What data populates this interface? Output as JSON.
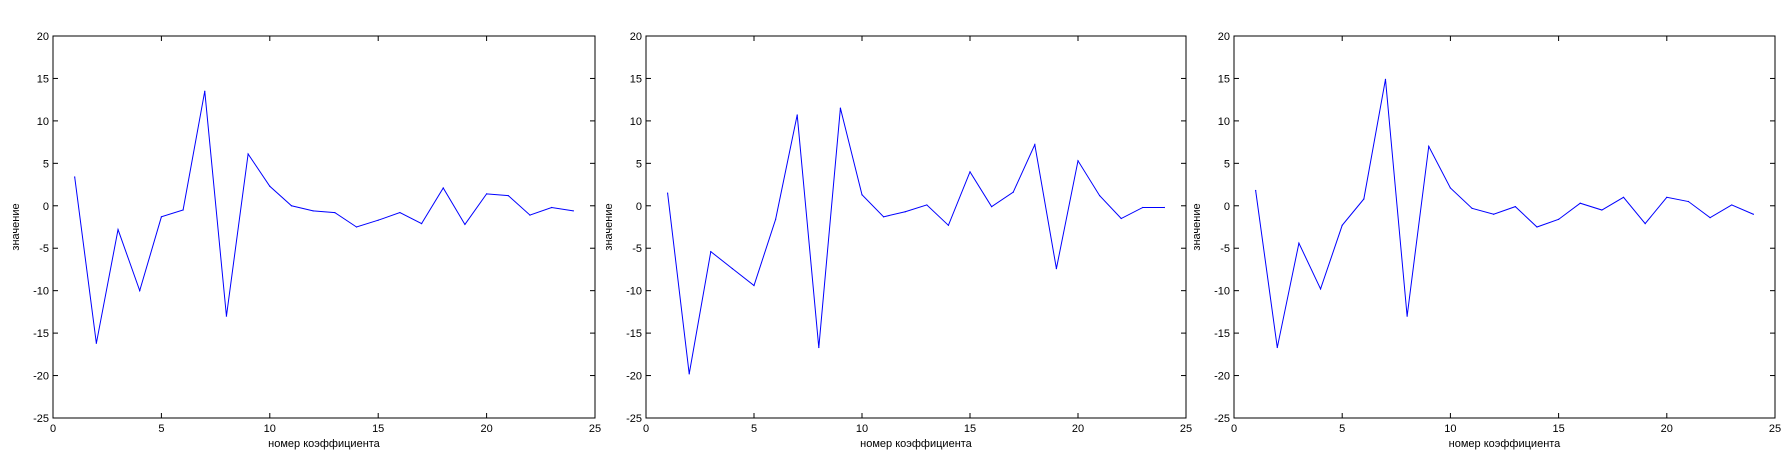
{
  "figure": {
    "background": "#ffffff",
    "line_color": "#0000ff",
    "axes_color": "#000000"
  },
  "chart_data": [
    {
      "type": "line",
      "title": "",
      "xlabel": "номер коэффициента",
      "ylabel": "значение",
      "xlim": [
        0,
        25
      ],
      "ylim": [
        -25,
        20
      ],
      "xticks": [
        0,
        5,
        10,
        15,
        20,
        25
      ],
      "yticks": [
        -25,
        -20,
        -15,
        -10,
        -5,
        0,
        5,
        10,
        15,
        20
      ],
      "grid": false,
      "x": [
        1,
        2,
        3,
        4,
        5,
        6,
        7,
        8,
        9,
        10,
        11,
        12,
        13,
        14,
        15,
        16,
        17,
        18,
        19,
        20,
        21,
        22,
        23,
        24
      ],
      "series": [
        {
          "values": [
            3.4,
            -16.2,
            -2.8,
            -10.0,
            -1.3,
            -0.5,
            13.5,
            -13.0,
            6.1,
            2.3,
            0.0,
            -0.6,
            -0.8,
            -2.5,
            -1.7,
            -0.8,
            -2.1,
            2.1,
            -2.2,
            1.4,
            1.2,
            -1.1,
            -0.2,
            -0.6
          ]
        }
      ]
    },
    {
      "type": "line",
      "title": "",
      "xlabel": "номер коэффициента",
      "ylabel": "значение",
      "xlim": [
        0,
        25
      ],
      "ylim": [
        -25,
        20
      ],
      "xticks": [
        0,
        5,
        10,
        15,
        20,
        25
      ],
      "yticks": [
        -25,
        -20,
        -15,
        -10,
        -5,
        0,
        5,
        10,
        15,
        20
      ],
      "grid": false,
      "x": [
        1,
        2,
        3,
        4,
        5,
        6,
        7,
        8,
        9,
        10,
        11,
        12,
        13,
        14,
        15,
        16,
        17,
        18,
        19,
        20,
        21,
        22,
        23,
        24
      ],
      "series": [
        {
          "values": [
            1.5,
            -19.8,
            -5.4,
            -7.4,
            -9.4,
            -1.6,
            10.7,
            -16.7,
            11.5,
            1.3,
            -1.3,
            -0.7,
            0.1,
            -2.3,
            4.0,
            -0.1,
            1.6,
            7.2,
            -7.4,
            5.3,
            1.2,
            -1.5,
            -0.2,
            -0.2
          ]
        }
      ]
    },
    {
      "type": "line",
      "title": "",
      "xlabel": "номер коэффициента",
      "ylabel": "значение",
      "xlim": [
        0,
        25
      ],
      "ylim": [
        -25,
        20
      ],
      "xticks": [
        0,
        5,
        10,
        15,
        20,
        25
      ],
      "yticks": [
        -25,
        -20,
        -15,
        -10,
        -5,
        0,
        5,
        10,
        15,
        20
      ],
      "grid": false,
      "x": [
        1,
        2,
        3,
        4,
        5,
        6,
        7,
        8,
        9,
        10,
        11,
        12,
        13,
        14,
        15,
        16,
        17,
        18,
        19,
        20,
        21,
        22,
        23,
        24
      ],
      "series": [
        {
          "values": [
            1.8,
            -16.7,
            -4.4,
            -9.8,
            -2.3,
            0.8,
            14.9,
            -13.0,
            7.0,
            2.1,
            -0.3,
            -1.0,
            -0.1,
            -2.5,
            -1.6,
            0.3,
            -0.5,
            1.0,
            -2.1,
            1.0,
            0.5,
            -1.4,
            0.1,
            -1.0
          ]
        }
      ]
    }
  ]
}
